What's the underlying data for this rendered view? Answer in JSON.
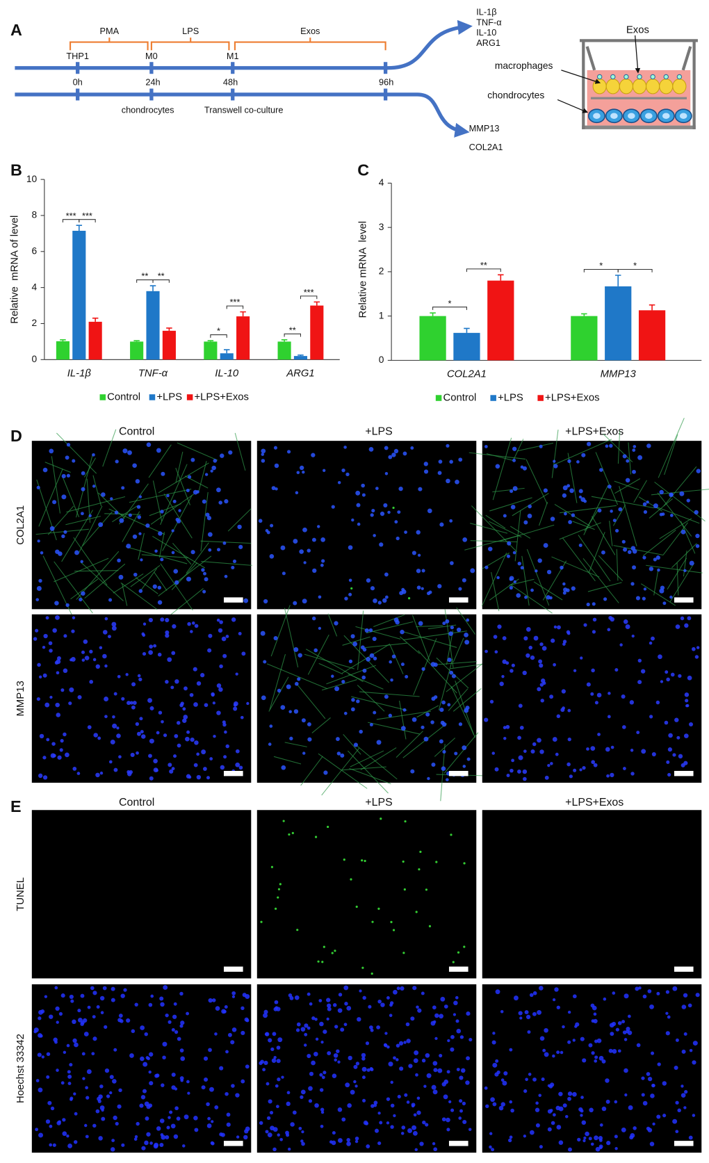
{
  "figure": {
    "A": {
      "label": "A",
      "stages": [
        "PMA",
        "LPS",
        "Exos"
      ],
      "cells": [
        "THP1",
        "M0",
        "M1"
      ],
      "times": [
        "0h",
        "24h",
        "48h",
        "96h"
      ],
      "bottom_labels": [
        "chondrocytes",
        "Transwell co-culture"
      ],
      "macrophage_outputs": [
        "IL-1β",
        "TNF-α",
        "IL-10",
        "ARG1"
      ],
      "chondrocyte_outputs": [
        "MMP13",
        "COL2A1"
      ],
      "transwell_labels": {
        "exos": "Exos",
        "macrophages": "macrophages",
        "chondrocytes": "chondrocytes"
      }
    },
    "D": {
      "label": "D",
      "columns": [
        "Control",
        "+LPS",
        "+LPS+Exos"
      ],
      "rows": [
        "COL2A1",
        "MMP13"
      ]
    },
    "E": {
      "label": "E",
      "columns": [
        "Control",
        "+LPS",
        "+LPS+Exos"
      ],
      "rows": [
        "TUNEL",
        "Hoechst 33342"
      ]
    }
  },
  "chart_data": [
    {
      "label": "B",
      "type": "bar",
      "ylabel": "Relative  mRNA of level",
      "categories": [
        "IL-1β",
        "TNF-α",
        "IL-10",
        "ARG1"
      ],
      "series": [
        {
          "name": "Control",
          "color": "#2fd12f",
          "values": [
            1.02,
            1.0,
            1.0,
            1.0
          ],
          "errors": [
            0.08,
            0.05,
            0.05,
            0.1
          ]
        },
        {
          "name": "+LPS",
          "color": "#1f78c8",
          "values": [
            7.15,
            3.8,
            0.35,
            0.2
          ],
          "errors": [
            0.3,
            0.3,
            0.2,
            0.05
          ]
        },
        {
          "name": "+LPS+Exos",
          "color": "#f01414",
          "values": [
            2.1,
            1.6,
            2.4,
            3.0
          ],
          "errors": [
            0.2,
            0.15,
            0.25,
            0.2
          ]
        }
      ],
      "ylim": [
        0,
        10
      ],
      "yticks": [
        0,
        2,
        4,
        6,
        8,
        10
      ],
      "annotations": [
        "***",
        "***",
        "**",
        "**",
        "*",
        "***",
        "**",
        "***"
      ]
    },
    {
      "label": "C",
      "type": "bar",
      "ylabel": "Relative mRNA  level",
      "categories": [
        "COL2A1",
        "MMP13"
      ],
      "series": [
        {
          "name": "Control",
          "color": "#2fd12f",
          "values": [
            1.0,
            1.0
          ],
          "errors": [
            0.07,
            0.05
          ]
        },
        {
          "name": "+LPS",
          "color": "#1f78c8",
          "values": [
            0.62,
            1.67
          ],
          "errors": [
            0.1,
            0.25
          ]
        },
        {
          "name": "+LPS+Exos",
          "color": "#f01414",
          "values": [
            1.8,
            1.13
          ],
          "errors": [
            0.13,
            0.12
          ]
        }
      ],
      "ylim": [
        0,
        4
      ],
      "yticks": [
        0,
        1,
        2,
        3,
        4
      ],
      "annotations": [
        "*",
        "**",
        "*",
        "*"
      ]
    }
  ]
}
